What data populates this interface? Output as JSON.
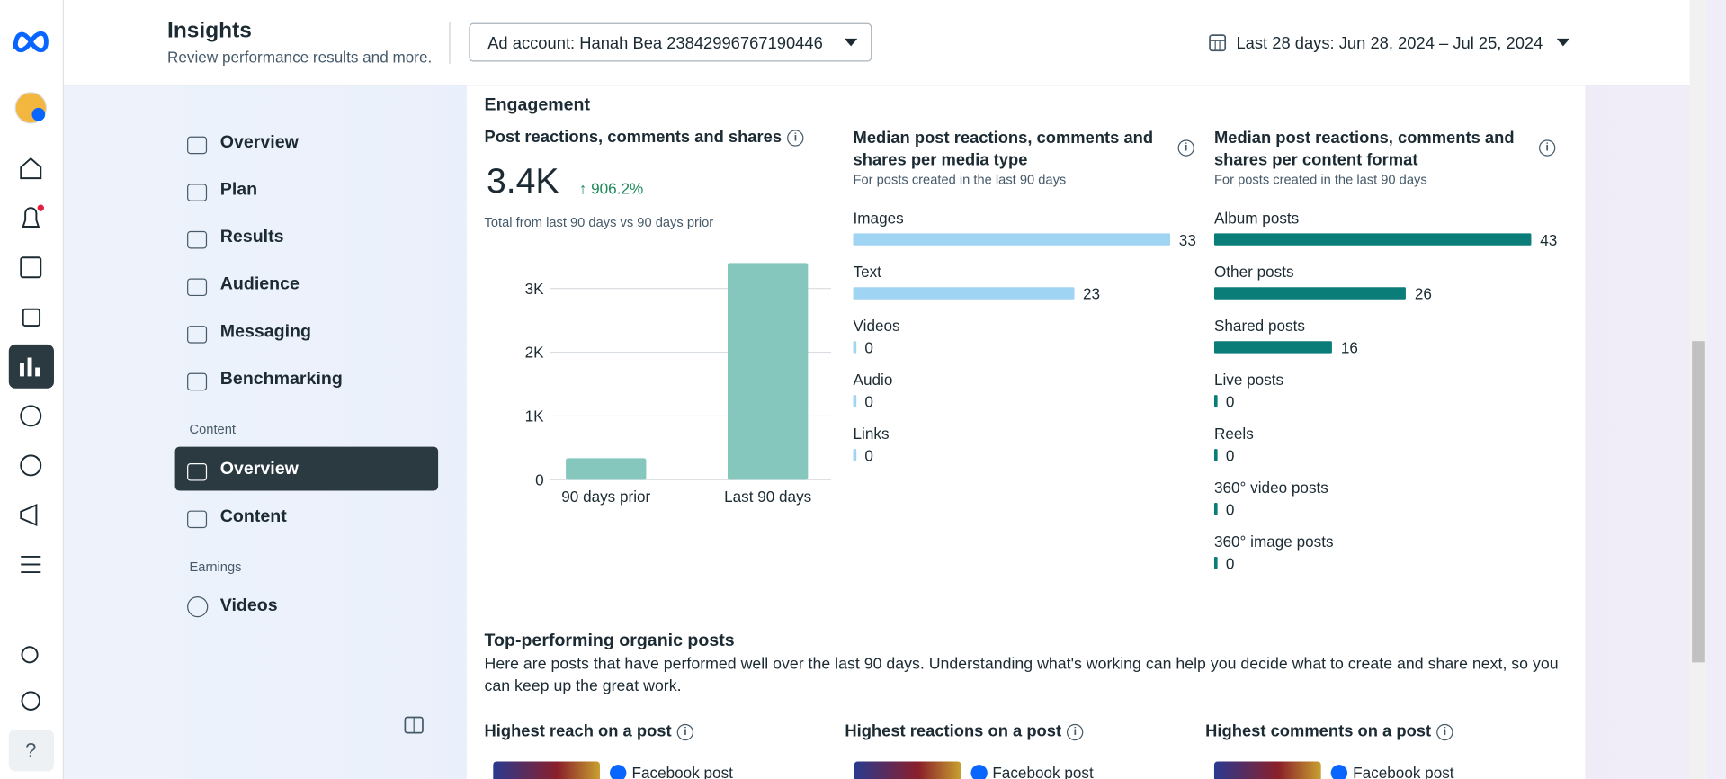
{
  "header": {
    "title": "Insights",
    "subtitle": "Review performance results and more.",
    "ad_account": "Ad account: Hanah Bea 23842996767190446",
    "date_range": "Last 28 days: Jun 28, 2024 – Jul 25, 2024"
  },
  "nav": {
    "items": [
      "Overview",
      "Plan",
      "Results",
      "Audience",
      "Messaging",
      "Benchmarking"
    ],
    "content_label": "Content",
    "content_items": [
      "Overview",
      "Content"
    ],
    "earnings_label": "Earnings",
    "earnings_items": [
      "Videos"
    ]
  },
  "engagement": {
    "title": "Engagement",
    "total": {
      "title": "Post reactions, comments and shares",
      "value": "3.4K",
      "change": "906.2%",
      "note": "Total from last 90 days vs 90 days prior",
      "chart": {
        "type": "bar",
        "categories": [
          "90 days prior",
          "Last 90 days"
        ],
        "values": [
          338,
          3400
        ],
        "color": "#85c7bd",
        "ylim": [
          0,
          3400
        ],
        "yticks": [
          0,
          {
            "value": 1000,
            "label": "1K"
          },
          {
            "value": 2000,
            "label": "2K"
          },
          {
            "value": 3000,
            "label": "3K"
          }
        ],
        "grid": true
      }
    },
    "media_type": {
      "title": "Median post reactions, comments and shares per media type",
      "subtitle": "For posts created in the last 90 days",
      "chart": {
        "type": "hbar",
        "categories": [
          "Images",
          "Text",
          "Videos",
          "Audio",
          "Links"
        ],
        "values": [
          33,
          23,
          0,
          0,
          0
        ],
        "color": "#9fd4f2"
      }
    },
    "content_format": {
      "title": "Median post reactions, comments and shares per content format",
      "subtitle": "For posts created in the last 90 days",
      "chart": {
        "type": "hbar",
        "categories": [
          "Album posts",
          "Other posts",
          "Shared posts",
          "Live posts",
          "Reels",
          "360° video posts",
          "360° image posts"
        ],
        "values": [
          43,
          26,
          16,
          0,
          0,
          0,
          0
        ],
        "color": "#0a7d79"
      }
    }
  },
  "top_posts": {
    "title": "Top-performing organic posts",
    "description": "Here are posts that have performed well over the last 90 days. Understanding what's working can help you decide what to create and share next, so you can keep up the great work.",
    "cards": [
      {
        "title": "Highest reach on a post",
        "label": "Facebook post"
      },
      {
        "title": "Highest reactions on a post",
        "label": "Facebook post"
      },
      {
        "title": "Highest comments on a post",
        "label": "Facebook post"
      }
    ]
  }
}
